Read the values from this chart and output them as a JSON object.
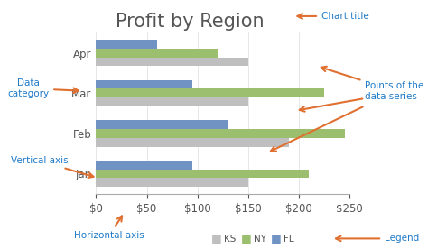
{
  "title": "Profit by Region",
  "categories": [
    "Jan",
    "Feb",
    "Mar",
    "Apr"
  ],
  "series": {
    "KS": [
      150,
      190,
      150,
      150
    ],
    "NY": [
      210,
      245,
      225,
      120
    ],
    "FL": [
      95,
      130,
      95,
      60
    ]
  },
  "colors": {
    "KS": "#bfbfbf",
    "NY": "#9bbf6e",
    "FL": "#7093c4"
  },
  "xlim": [
    0,
    250
  ],
  "xticks": [
    0,
    50,
    100,
    150,
    200,
    250
  ],
  "background_color": "#ffffff",
  "annotation_color": "#1f7ac8",
  "arrow_color": "#e07030",
  "title_fontsize": 15,
  "tick_fontsize": 8.5,
  "legend_labels": [
    "KS",
    "NY",
    "FL"
  ],
  "bar_height": 0.22
}
